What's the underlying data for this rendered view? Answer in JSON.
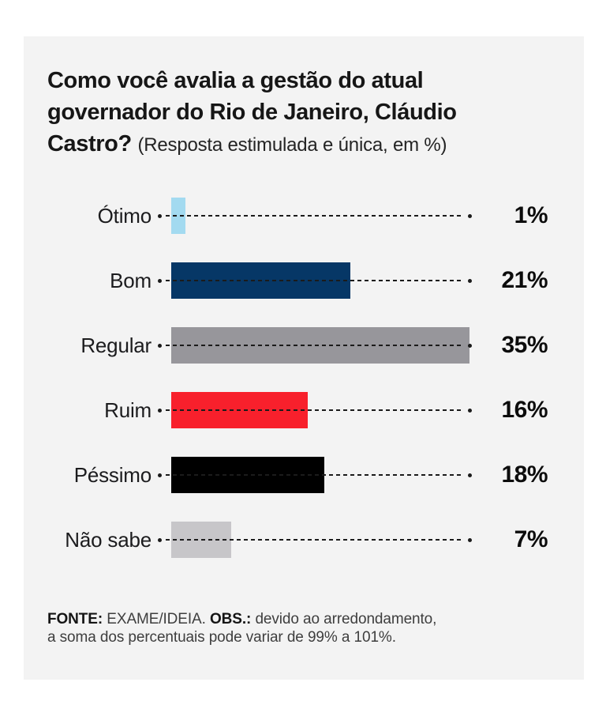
{
  "colors": {
    "page_bg": "#ffffff",
    "card_bg": "#f3f3f3",
    "title_text": "#161616",
    "label_text": "#1c1c1e",
    "value_text": "#0c0c0c",
    "leader_line": "#1b1b1b"
  },
  "title": {
    "line1": "Como você avalia a gestão do atual",
    "line2": "governador do Rio de Janeiro, Cláudio",
    "line3_bold": "Castro?",
    "line3_note": "(Resposta estimulada e única, em %)"
  },
  "chart_data": {
    "type": "bar",
    "orientation": "horizontal",
    "title": "Como você avalia a gestão do atual governador do Rio de Janeiro, Cláudio Castro?",
    "subtitle": "(Resposta estimulada e única, em %)",
    "unit": "%",
    "categories": [
      "Ótimo",
      "Bom",
      "Regular",
      "Ruim",
      "Péssimo",
      "Não sabe"
    ],
    "values": [
      1,
      21,
      35,
      16,
      18,
      7
    ],
    "value_labels": [
      "1%",
      "21%",
      "35%",
      "16%",
      "18%",
      "7%"
    ],
    "bar_colors": [
      "#a3daf0",
      "#063766",
      "#97969b",
      "#f8202c",
      "#000000",
      "#c7c6c9"
    ],
    "xlim": [
      0,
      35
    ],
    "grid": false,
    "legend": false,
    "leader_lines": "dotted with end dots from category label to value label"
  },
  "footer": {
    "fonte_label": "FONTE:",
    "fonte_value": " EXAME/IDEIA. ",
    "obs_label": "OBS.:",
    "obs_value": " devido ao arredondamento,",
    "line2": "a soma dos percentuais pode variar de 99% a 101%."
  }
}
